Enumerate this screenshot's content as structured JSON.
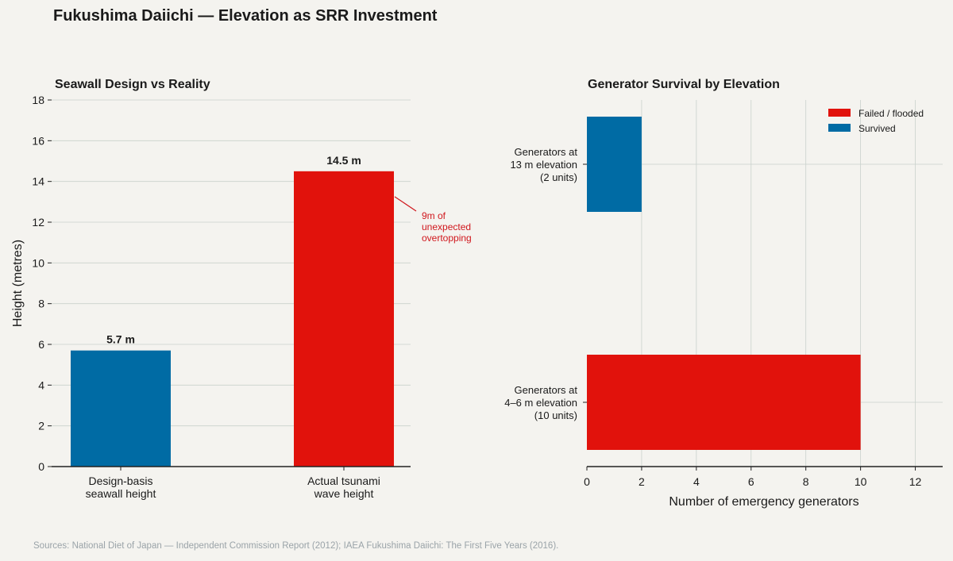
{
  "title": "Fukushima Daiichi — Elevation as SRR Investment",
  "source_note": "Sources: National Diet of Japan — Independent Commission Report (2012); IAEA Fukushima Daiichi: The First Five Years (2016).",
  "colors": {
    "blue": "#006ba4",
    "red": "#e1120c",
    "annotation": "#d0171d"
  },
  "chart_data": [
    {
      "type": "bar",
      "title": "Seawall Design vs Reality",
      "ylabel": "Height (metres)",
      "xlabel": "",
      "ylim": [
        0,
        18
      ],
      "yticks": [
        0,
        2,
        4,
        6,
        8,
        10,
        12,
        14,
        16,
        18
      ],
      "grid": true,
      "categories": [
        [
          "Design-basis",
          "seawall height"
        ],
        [
          "Actual tsunami",
          "wave height"
        ]
      ],
      "values": [
        5.7,
        14.5
      ],
      "value_labels": [
        "5.7 m",
        "14.5 m"
      ],
      "bar_colors": [
        "#006ba4",
        "#e1120c"
      ],
      "annotation": {
        "lines": [
          "9m of",
          "unexpected",
          "overtopping"
        ],
        "points_to": 14.5
      }
    },
    {
      "type": "bar",
      "orientation": "horizontal",
      "title": "Generator Survival by Elevation",
      "xlabel": "Number of emergency generators",
      "ylabel": "",
      "xlim": [
        0,
        13
      ],
      "xticks": [
        0,
        2,
        4,
        6,
        8,
        10,
        12
      ],
      "grid": true,
      "categories": [
        [
          "Generators at",
          "4–6 m elevation",
          "(10 units)"
        ],
        [
          "Generators at",
          "13 m elevation",
          "(2 units)"
        ]
      ],
      "series": [
        {
          "name": "Failed / flooded",
          "color": "#e1120c",
          "values": [
            10,
            0
          ]
        },
        {
          "name": "Survived",
          "color": "#006ba4",
          "values": [
            0,
            2
          ]
        }
      ],
      "legend": "top-right"
    }
  ]
}
